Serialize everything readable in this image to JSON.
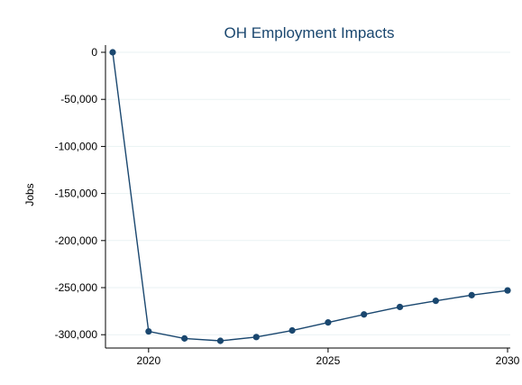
{
  "chart_data": {
    "type": "line",
    "title": "OH Employment Impacts",
    "xlabel": "",
    "ylabel": "Jobs",
    "x": [
      2019,
      2020,
      2021,
      2022,
      2023,
      2024,
      2025,
      2026,
      2027,
      2028,
      2029,
      2030
    ],
    "series": [
      {
        "values": [
          0,
          -296500,
          -304000,
          -306500,
          -302500,
          -295500,
          -287000,
          -278500,
          -270500,
          -264000,
          -258000,
          -253000
        ]
      }
    ],
    "xticks": [
      2020,
      2025,
      2030
    ],
    "xtick_labels": [
      "2020",
      "2025",
      "2030"
    ],
    "yticks": [
      0,
      -50000,
      -100000,
      -150000,
      -200000,
      -250000,
      -300000
    ],
    "ytick_labels": [
      "0",
      "-50,000",
      "-100,000",
      "-150,000",
      "-200,000",
      "-250,000",
      "-300,000"
    ],
    "xlim": [
      2019,
      2030
    ],
    "ylim": [
      -306500,
      0
    ],
    "grid": true,
    "line_color": "#1a476f",
    "marker_color": "#1a476f",
    "title_color": "#1a476f",
    "grid_color": "#eaf2f3"
  }
}
